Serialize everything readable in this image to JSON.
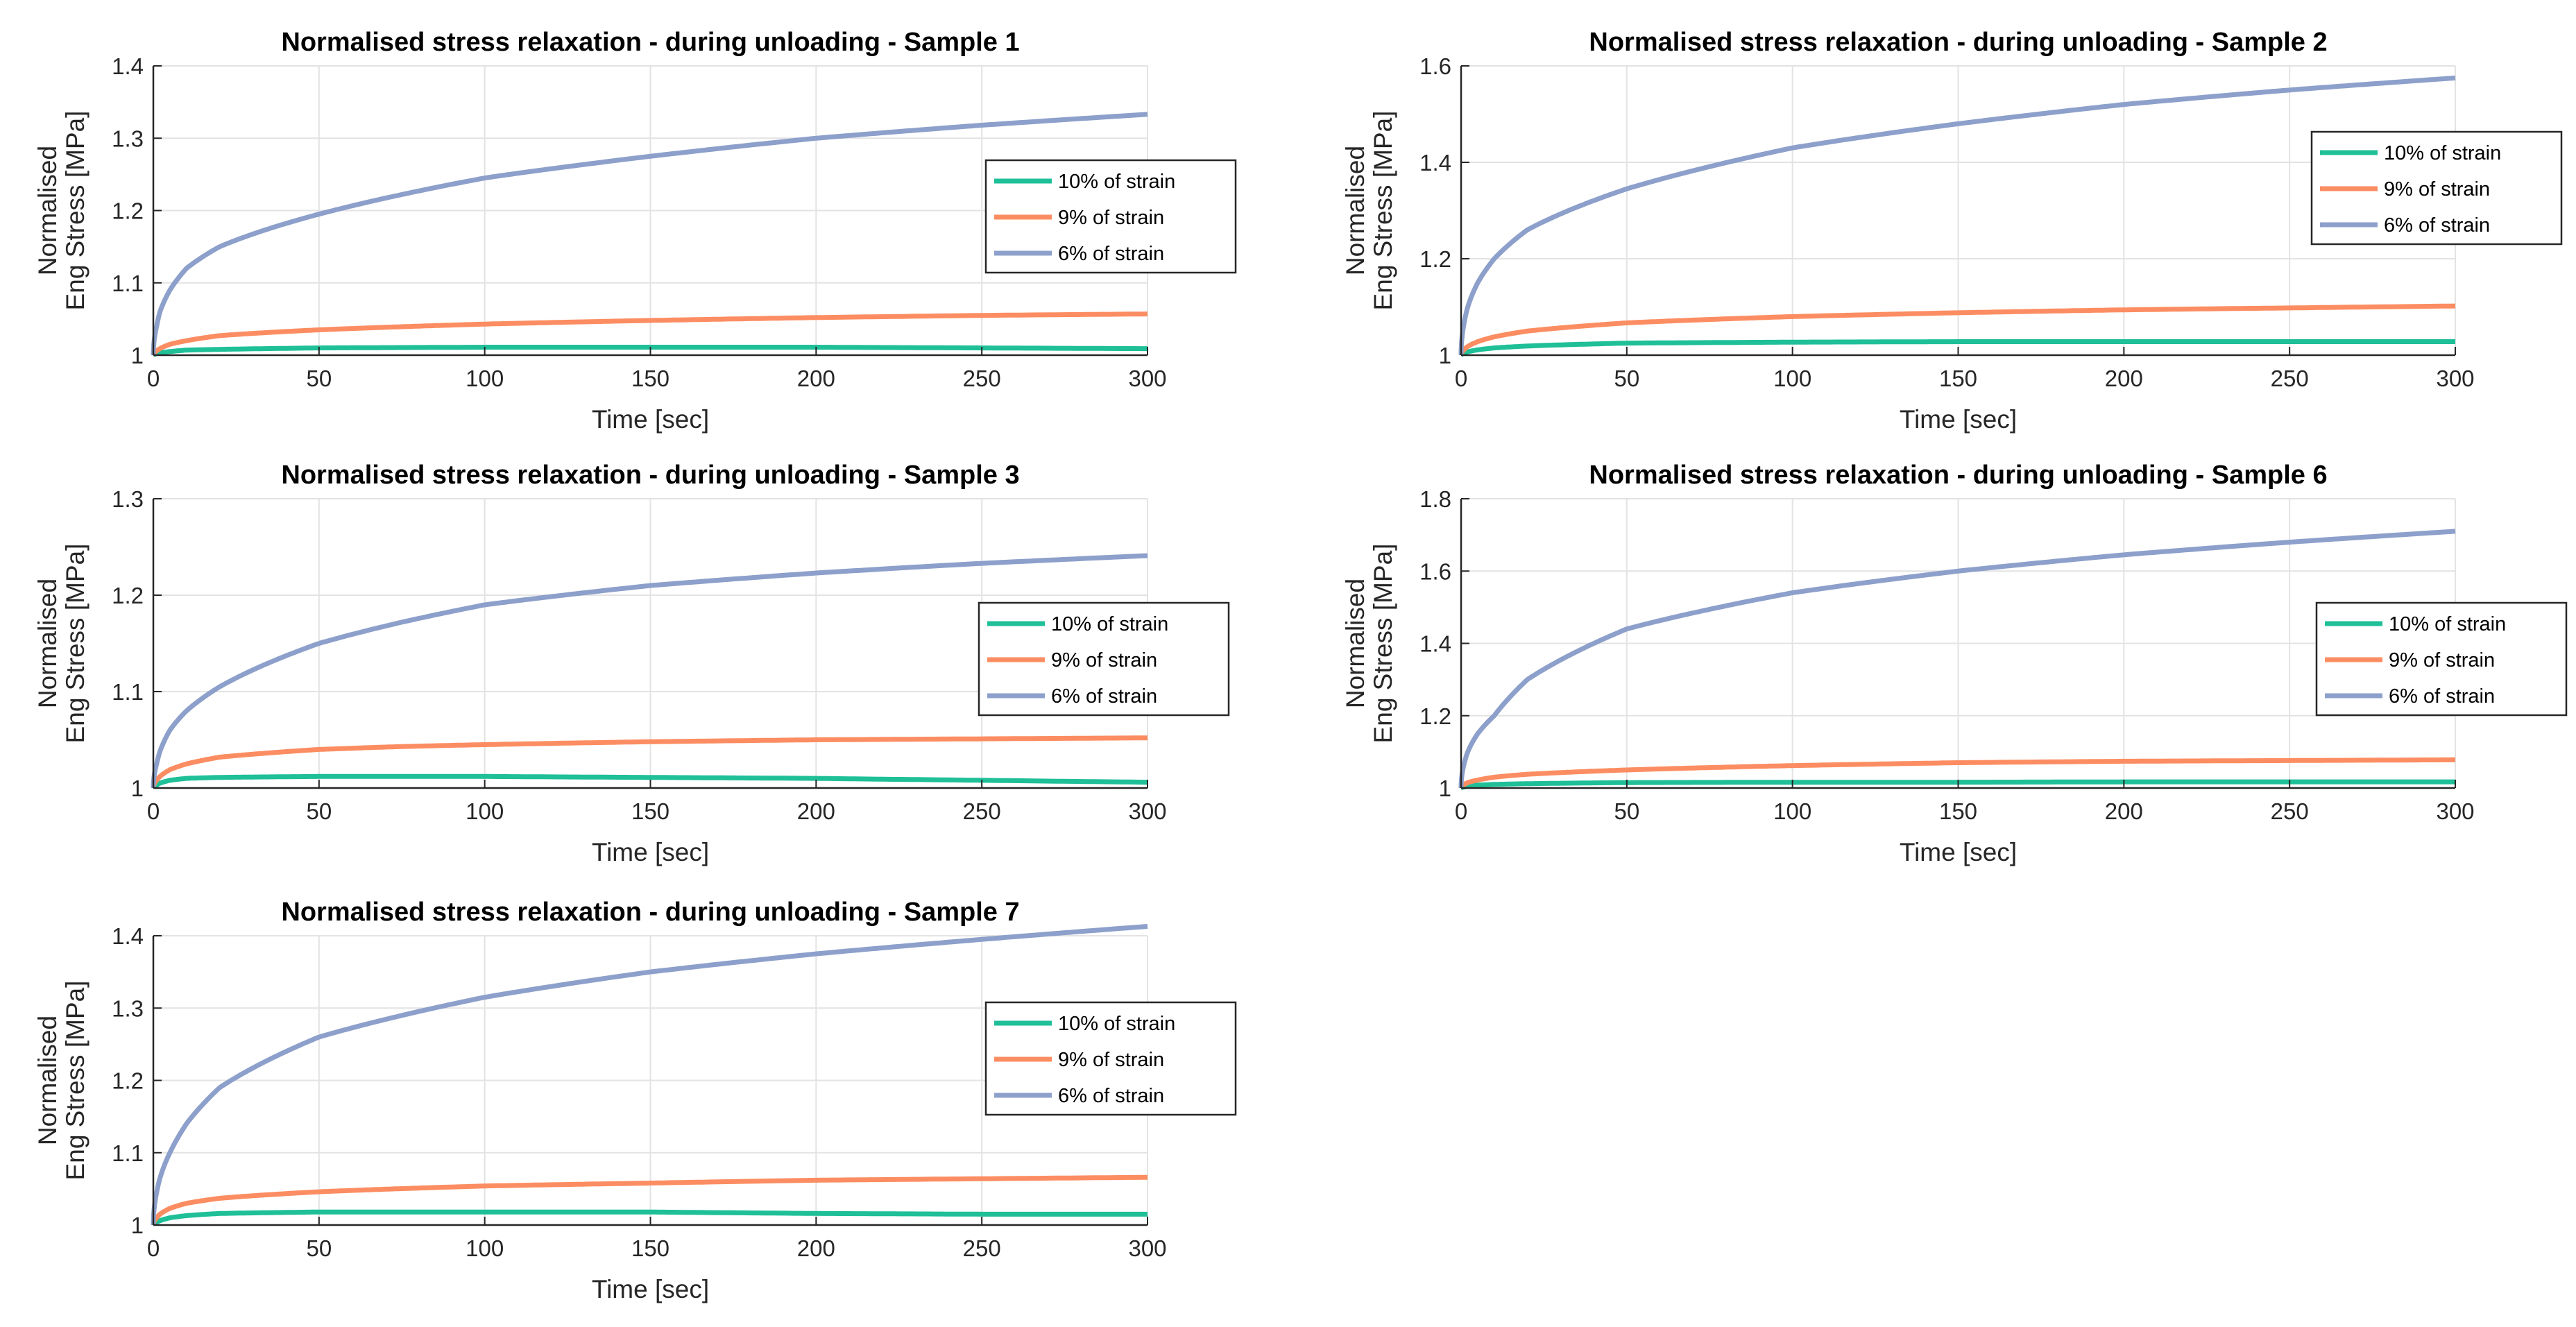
{
  "colors": {
    "s10": "#1fbf98",
    "s9": "#fc8d62",
    "s6": "#8da0cb",
    "grid": "#e3e3e3",
    "axis": "#262626"
  },
  "chart_data": [
    {
      "type": "line",
      "title": "Normalised stress relaxation - during unloading -  Sample 1",
      "xlabel": "Time [sec]",
      "ylabel": [
        "Normalised",
        "Eng Stress [MPa]"
      ],
      "xlim": [
        0,
        300
      ],
      "ylim": [
        1,
        1.4
      ],
      "xticks": [
        "0",
        "50",
        "100",
        "150",
        "200",
        "250",
        "300"
      ],
      "yticks": [
        "1",
        "1.1",
        "1.2",
        "1.3",
        "1.4"
      ],
      "grid": true,
      "legend_position": "right",
      "x": [
        0,
        1,
        2,
        5,
        10,
        20,
        50,
        100,
        150,
        200,
        250,
        300
      ],
      "series": [
        {
          "name": "10% of strain",
          "color_key": "s10",
          "values": [
            1,
            1.002,
            1.003,
            1.005,
            1.007,
            1.008,
            1.01,
            1.011,
            1.011,
            1.011,
            1.01,
            1.009
          ]
        },
        {
          "name": "9% of strain",
          "color_key": "s9",
          "values": [
            1,
            1.006,
            1.009,
            1.015,
            1.02,
            1.027,
            1.035,
            1.043,
            1.048,
            1.052,
            1.055,
            1.057
          ]
        },
        {
          "name": "6% of strain",
          "color_key": "s6",
          "values": [
            1,
            1.04,
            1.06,
            1.09,
            1.12,
            1.15,
            1.195,
            1.245,
            1.275,
            1.3,
            1.318,
            1.333
          ]
        }
      ]
    },
    {
      "type": "line",
      "title": "Normalised stress relaxation - during unloading - Sample 2",
      "xlabel": "Time [sec]",
      "ylabel": [
        "Normalised",
        "Eng Stress [MPa]"
      ],
      "xlim": [
        0,
        300
      ],
      "ylim": [
        1,
        1.6
      ],
      "xticks": [
        "0",
        "50",
        "100",
        "150",
        "200",
        "250",
        "300"
      ],
      "yticks": [
        "1",
        "1.2",
        "1.4",
        "1.6"
      ],
      "grid": true,
      "legend_position": "right",
      "x": [
        0,
        1,
        2,
        5,
        10,
        20,
        50,
        100,
        150,
        200,
        250,
        300
      ],
      "series": [
        {
          "name": "10% of strain",
          "color_key": "s10",
          "values": [
            1,
            1.004,
            1.007,
            1.011,
            1.015,
            1.019,
            1.025,
            1.027,
            1.028,
            1.028,
            1.028,
            1.028
          ]
        },
        {
          "name": "9% of strain",
          "color_key": "s9",
          "values": [
            1,
            1.012,
            1.018,
            1.028,
            1.038,
            1.05,
            1.067,
            1.08,
            1.088,
            1.094,
            1.098,
            1.102
          ]
        },
        {
          "name": "6% of strain",
          "color_key": "s6",
          "values": [
            1,
            1.07,
            1.1,
            1.15,
            1.2,
            1.26,
            1.345,
            1.43,
            1.48,
            1.52,
            1.55,
            1.575
          ]
        }
      ]
    },
    {
      "type": "line",
      "title": "Normalised stress relaxation - during unloading - Sample 3",
      "xlabel": "Time [sec]",
      "ylabel": [
        "Normalised",
        "Eng Stress [MPa]"
      ],
      "xlim": [
        0,
        300
      ],
      "ylim": [
        1,
        1.3
      ],
      "xticks": [
        "0",
        "50",
        "100",
        "150",
        "200",
        "250",
        "300"
      ],
      "yticks": [
        "1",
        "1.1",
        "1.2",
        "1.3"
      ],
      "grid": true,
      "legend_position": "right",
      "x": [
        0,
        1,
        2,
        5,
        10,
        20,
        50,
        75,
        100,
        150,
        200,
        250,
        300
      ],
      "series": [
        {
          "name": "10% of strain",
          "color_key": "s10",
          "values": [
            1,
            1.003,
            1.005,
            1.008,
            1.01,
            1.011,
            1.012,
            1.012,
            1.012,
            1.011,
            1.01,
            1.008,
            1.006
          ]
        },
        {
          "name": "9% of strain",
          "color_key": "s9",
          "values": [
            1,
            1.008,
            1.012,
            1.019,
            1.025,
            1.032,
            1.04,
            1.043,
            1.045,
            1.048,
            1.05,
            1.051,
            1.052
          ]
        },
        {
          "name": "6% of strain",
          "color_key": "s6",
          "values": [
            1,
            1.025,
            1.038,
            1.06,
            1.08,
            1.105,
            1.15,
            1.172,
            1.19,
            1.21,
            1.223,
            1.233,
            1.241
          ]
        }
      ]
    },
    {
      "type": "line",
      "title": "Normalised stress relaxation - during unloading - Sample 6",
      "xlabel": "Time [sec]",
      "ylabel": [
        "Normalised",
        "Eng Stress [MPa]"
      ],
      "xlim": [
        0,
        300
      ],
      "ylim": [
        1,
        1.8
      ],
      "xticks": [
        "0",
        "50",
        "100",
        "150",
        "200",
        "250",
        "300"
      ],
      "yticks": [
        "1",
        "1.2",
        "1.4",
        "1.6",
        "1.8"
      ],
      "grid": true,
      "legend_position": "right",
      "x": [
        0,
        1,
        2,
        5,
        10,
        20,
        50,
        100,
        150,
        200,
        250,
        300
      ],
      "series": [
        {
          "name": "10% of strain",
          "color_key": "s10",
          "values": [
            1,
            1.003,
            1.005,
            1.008,
            1.01,
            1.012,
            1.015,
            1.016,
            1.016,
            1.017,
            1.017,
            1.017
          ]
        },
        {
          "name": "9% of strain",
          "color_key": "s9",
          "values": [
            1,
            1.01,
            1.015,
            1.022,
            1.03,
            1.038,
            1.05,
            1.062,
            1.07,
            1.074,
            1.076,
            1.078
          ]
        },
        {
          "name": "6% of strain",
          "color_key": "s6",
          "values": [
            1,
            1.07,
            1.1,
            1.15,
            1.2,
            1.3,
            1.44,
            1.54,
            1.6,
            1.645,
            1.68,
            1.71
          ]
        }
      ]
    },
    {
      "type": "line",
      "title": "Normalised stress relaxation - during unloading - Sample 7",
      "xlabel": "Time [sec]",
      "ylabel": [
        "Normalised",
        "Eng Stress [MPa]"
      ],
      "xlim": [
        0,
        300
      ],
      "ylim": [
        1,
        1.4
      ],
      "xticks": [
        "0",
        "50",
        "100",
        "150",
        "200",
        "250",
        "300"
      ],
      "yticks": [
        "1",
        "1.1",
        "1.2",
        "1.3",
        "1.4"
      ],
      "grid": true,
      "legend_position": "right",
      "x": [
        0,
        1,
        2,
        5,
        10,
        20,
        50,
        100,
        150,
        200,
        250,
        300
      ],
      "series": [
        {
          "name": "10% of strain",
          "color_key": "s10",
          "values": [
            1,
            1.004,
            1.006,
            1.01,
            1.013,
            1.016,
            1.018,
            1.018,
            1.018,
            1.016,
            1.015,
            1.015
          ]
        },
        {
          "name": "9% of strain",
          "color_key": "s9",
          "values": [
            1,
            1.01,
            1.015,
            1.023,
            1.03,
            1.037,
            1.046,
            1.054,
            1.058,
            1.062,
            1.064,
            1.066
          ]
        },
        {
          "name": "6% of strain",
          "color_key": "s6",
          "values": [
            1,
            1.045,
            1.065,
            1.1,
            1.14,
            1.19,
            1.26,
            1.315,
            1.35,
            1.375,
            1.395,
            1.413
          ]
        }
      ]
    }
  ]
}
